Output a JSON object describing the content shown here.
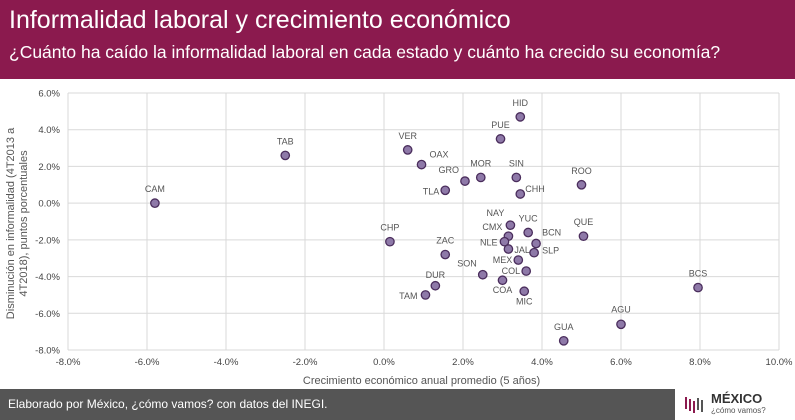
{
  "header": {
    "title": "Informalidad laboral y crecimiento económico",
    "subtitle": "¿Cuánto ha caído la informalidad laboral en cada estado y cuánto ha crecido su economía?"
  },
  "footer": {
    "source": "Elaborado por México, ¿cómo vamos? con datos del INEGI.",
    "logo_text": "MÉXICO",
    "logo_subtext": "¿cómo vamos?"
  },
  "colors": {
    "header_bg": "#8b1a4e",
    "footer_bg": "#555555",
    "point_fill": "#8e79a8",
    "point_stroke": "#4a2d5c"
  },
  "chart_data": {
    "type": "scatter",
    "xlabel": "Crecimiento económico anual promedio (5 años)",
    "ylabel": "Disminución en informalidad (4T2013 a 4T2018), puntos porcentuales",
    "ylabel_lines": [
      "Disminución en informalidad (4T2013 a",
      "4T2018), puntos porcentuales"
    ],
    "xlim": [
      -8,
      10
    ],
    "ylim": [
      -8,
      6
    ],
    "x_ticks": [
      "-8.0%",
      "-6.0%",
      "-4.0%",
      "-2.0%",
      "0.0%",
      "2.0%",
      "4.0%",
      "6.0%",
      "8.0%",
      "10.0%"
    ],
    "y_ticks": [
      "6.0%",
      "4.0%",
      "2.0%",
      "0.0%",
      "-2.0%",
      "-4.0%",
      "-6.0%",
      "-8.0%"
    ],
    "grid": true,
    "points": [
      {
        "label": "CAM",
        "x": -5.8,
        "y": 0.0
      },
      {
        "label": "TAB",
        "x": -2.5,
        "y": 2.6
      },
      {
        "label": "VER",
        "x": 0.6,
        "y": 2.9
      },
      {
        "label": "OAX",
        "x": 0.95,
        "y": 2.1
      },
      {
        "label": "GRO",
        "x": 2.05,
        "y": 1.2
      },
      {
        "label": "TLA",
        "x": 1.55,
        "y": 0.7
      },
      {
        "label": "MOR",
        "x": 2.45,
        "y": 1.4
      },
      {
        "label": "PUE",
        "x": 2.95,
        "y": 3.5
      },
      {
        "label": "HID",
        "x": 3.45,
        "y": 4.7
      },
      {
        "label": "SIN",
        "x": 3.35,
        "y": 1.4
      },
      {
        "label": "CHH",
        "x": 3.45,
        "y": 0.5
      },
      {
        "label": "ROO",
        "x": 5.0,
        "y": 1.0
      },
      {
        "label": "CHP",
        "x": 0.15,
        "y": -2.1
      },
      {
        "label": "ZAC",
        "x": 1.55,
        "y": -2.8
      },
      {
        "label": "NAY",
        "x": 3.2,
        "y": -1.2
      },
      {
        "label": "YUC",
        "x": 3.65,
        "y": -1.6
      },
      {
        "label": "CMX",
        "x": 3.15,
        "y": -1.8
      },
      {
        "label": "NLE",
        "x": 3.05,
        "y": -2.1
      },
      {
        "label": "BCN",
        "x": 3.85,
        "y": -2.2
      },
      {
        "label": "JAL",
        "x": 3.15,
        "y": -2.5
      },
      {
        "label": "SLP",
        "x": 3.8,
        "y": -2.7
      },
      {
        "label": "QUE",
        "x": 5.05,
        "y": -1.8
      },
      {
        "label": "MEX",
        "x": 3.4,
        "y": -3.1
      },
      {
        "label": "SON",
        "x": 2.5,
        "y": -3.9
      },
      {
        "label": "COL",
        "x": 3.6,
        "y": -3.7
      },
      {
        "label": "COA",
        "x": 3.0,
        "y": -4.2
      },
      {
        "label": "MIC",
        "x": 3.55,
        "y": -4.8
      },
      {
        "label": "DUR",
        "x": 1.3,
        "y": -4.5
      },
      {
        "label": "TAM",
        "x": 1.05,
        "y": -5.0
      },
      {
        "label": "BCS",
        "x": 7.95,
        "y": -4.6
      },
      {
        "label": "AGU",
        "x": 6.0,
        "y": -6.6
      },
      {
        "label": "GUA",
        "x": 4.55,
        "y": -7.5
      }
    ]
  }
}
